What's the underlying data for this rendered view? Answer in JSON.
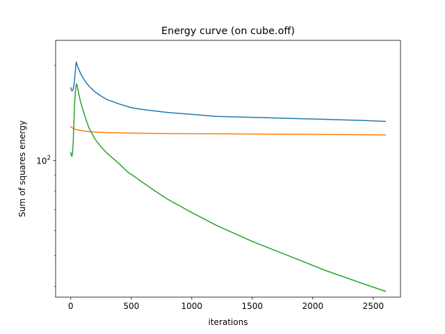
{
  "chart_data": {
    "type": "line",
    "title": "Energy curve (on cube.off)",
    "xlabel": "iterations",
    "ylabel": "Sum of squares energy",
    "yscale": "log",
    "xlim": [
      -125,
      2725
    ],
    "ylim": [
      37,
      240
    ],
    "x_ticks": [
      0,
      500,
      1000,
      1500,
      2000,
      2500
    ],
    "x_tick_labels": [
      "0",
      "500",
      "1000",
      "1500",
      "2000",
      "2500"
    ],
    "y_ticks": [
      100
    ],
    "y_tick_labels": [
      {
        "base": "10",
        "exp": "2"
      }
    ],
    "y_minor_ticks": [
      40,
      50,
      60,
      70,
      80,
      90,
      200
    ],
    "grid": false,
    "legend": "none",
    "series": [
      {
        "color": "#1f77b4",
        "x": [
          0,
          10,
          20,
          30,
          40,
          45,
          50,
          60,
          70,
          80,
          100,
          120,
          150,
          200,
          250,
          300,
          400,
          500,
          600,
          800,
          1000,
          1200,
          1500,
          1800,
          2100,
          2400,
          2600
        ],
        "y": [
          170,
          166,
          168,
          178,
          196,
          205,
          202,
          197,
          193,
          189,
          183,
          178,
          172,
          165,
          160,
          156,
          151,
          147,
          145,
          142,
          140,
          138,
          137,
          136,
          135,
          134,
          133
        ]
      },
      {
        "color": "#ff7f0e",
        "x": [
          0,
          10,
          20,
          30,
          40,
          50,
          60,
          80,
          100,
          150,
          200,
          300,
          400,
          500,
          700,
          1000,
          1500,
          2000,
          2600
        ],
        "y": [
          128,
          127,
          126.5,
          126,
          125.5,
          125.2,
          125,
          124.5,
          124.2,
          123.5,
          123,
          122.6,
          122.4,
          122.2,
          121.9,
          121.6,
          121.3,
          121,
          120.6
        ]
      },
      {
        "color": "#2ca02c",
        "x": [
          0,
          5,
          10,
          15,
          20,
          25,
          30,
          35,
          40,
          45,
          48,
          50,
          55,
          60,
          70,
          80,
          100,
          120,
          150,
          200,
          250,
          300,
          350,
          400,
          450,
          480,
          500,
          600,
          700,
          800,
          1000,
          1200,
          1500,
          1800,
          2100,
          2400,
          2600
        ],
        "y": [
          106,
          103.6,
          103.2,
          106,
          114,
          129,
          146,
          159,
          168,
          173,
          175,
          174,
          171,
          167,
          160,
          154,
          145,
          137,
          127,
          117,
          110.5,
          105.5,
          101.5,
          97.8,
          93.6,
          91.4,
          90.5,
          85,
          80,
          75.5,
          68.5,
          62.5,
          55.5,
          50,
          45,
          41,
          38.6
        ]
      }
    ]
  }
}
